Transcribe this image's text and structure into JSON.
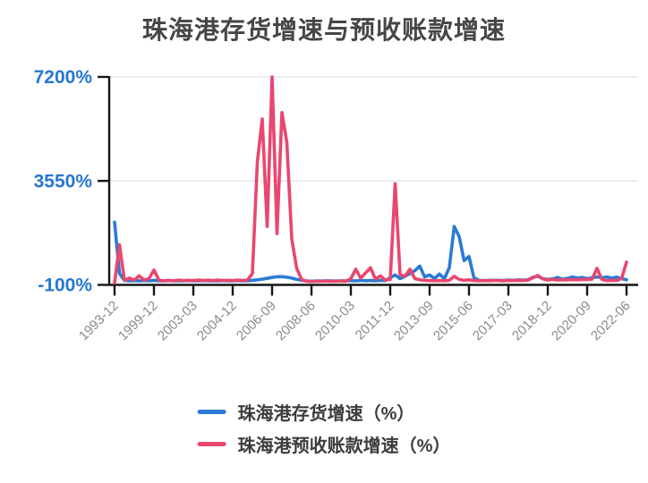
{
  "title": "珠海港存货增速与预收账款增速",
  "colors": {
    "series_inventory": "#2a7bd4",
    "series_advance": "#e8476f",
    "y_tick_label": "#2777d3",
    "x_tick_label": "#8a8a8a",
    "axis": "#151515",
    "grid": "#e7e7e7",
    "title_text": "#464646"
  },
  "legend": {
    "items": [
      {
        "label": "珠海港存货增速（%）",
        "series": 0
      },
      {
        "label": "珠海港预收账款增速（%）",
        "series": 1
      }
    ]
  },
  "chart_data": {
    "type": "line",
    "title": "珠海港存货增速与预收账款增速",
    "xlabel": "",
    "ylabel": "",
    "ylim": [
      -100,
      7200
    ],
    "grid": "horizontal-light",
    "legend_position": "bottom",
    "y_ticks": [
      {
        "label": "7200%",
        "value": 7200
      },
      {
        "label": "3550%",
        "value": 3550
      },
      {
        "label": "-100%",
        "value": -100
      }
    ],
    "x_tick_labels": [
      "1993-12",
      "1999-12",
      "2003-03",
      "2004-12",
      "2006-09",
      "2008-06",
      "2010-03",
      "2011-12",
      "2013-09",
      "2015-06",
      "2017-03",
      "2018-12",
      "2020-09",
      "2022-06"
    ],
    "x_tick_indices": [
      0,
      8,
      16,
      24,
      32,
      40,
      48,
      56,
      64,
      72,
      80,
      88,
      96,
      104
    ],
    "series": [
      {
        "name": "珠海港存货增速（%）",
        "color": "#2a7bd4",
        "values": [
          2100,
          300,
          60,
          40,
          50,
          40,
          50,
          40,
          60,
          40,
          45,
          50,
          40,
          45,
          40,
          50,
          45,
          40,
          50,
          45,
          40,
          45,
          50,
          40,
          45,
          50,
          40,
          45,
          60,
          80,
          100,
          130,
          160,
          185,
          190,
          170,
          140,
          90,
          60,
          40,
          30,
          40,
          35,
          45,
          40,
          35,
          45,
          40,
          50,
          40,
          60,
          45,
          55,
          45,
          60,
          50,
          150,
          250,
          120,
          200,
          300,
          400,
          560,
          180,
          250,
          120,
          280,
          120,
          500,
          1950,
          1600,
          750,
          900,
          150,
          60,
          50,
          60,
          55,
          60,
          50,
          70,
          60,
          75,
          65,
          80,
          170,
          200,
          120,
          90,
          110,
          160,
          100,
          130,
          180,
          140,
          160,
          120,
          150,
          180,
          150,
          180,
          140,
          170,
          120,
          80
        ]
      },
      {
        "name": "珠海港预收账款增速（%）",
        "color": "#e8476f",
        "values": [
          -30,
          1310,
          60,
          140,
          70,
          220,
          70,
          120,
          420,
          70,
          40,
          60,
          45,
          70,
          50,
          60,
          50,
          70,
          55,
          65,
          50,
          70,
          55,
          60,
          50,
          65,
          55,
          70,
          300,
          4200,
          5720,
          1950,
          7200,
          1700,
          5950,
          4900,
          1500,
          480,
          90,
          30,
          20,
          30,
          25,
          35,
          30,
          25,
          35,
          30,
          120,
          450,
          140,
          320,
          500,
          100,
          220,
          70,
          90,
          3450,
          260,
          200,
          450,
          120,
          80,
          60,
          50,
          40,
          50,
          45,
          60,
          200,
          90,
          60,
          80,
          50,
          40,
          50,
          45,
          55,
          50,
          45,
          55,
          50,
          60,
          55,
          70,
          150,
          230,
          110,
          70,
          90,
          70,
          80,
          75,
          85,
          80,
          90,
          85,
          100,
          480,
          90,
          50,
          60,
          55,
          120,
          700
        ]
      }
    ]
  }
}
